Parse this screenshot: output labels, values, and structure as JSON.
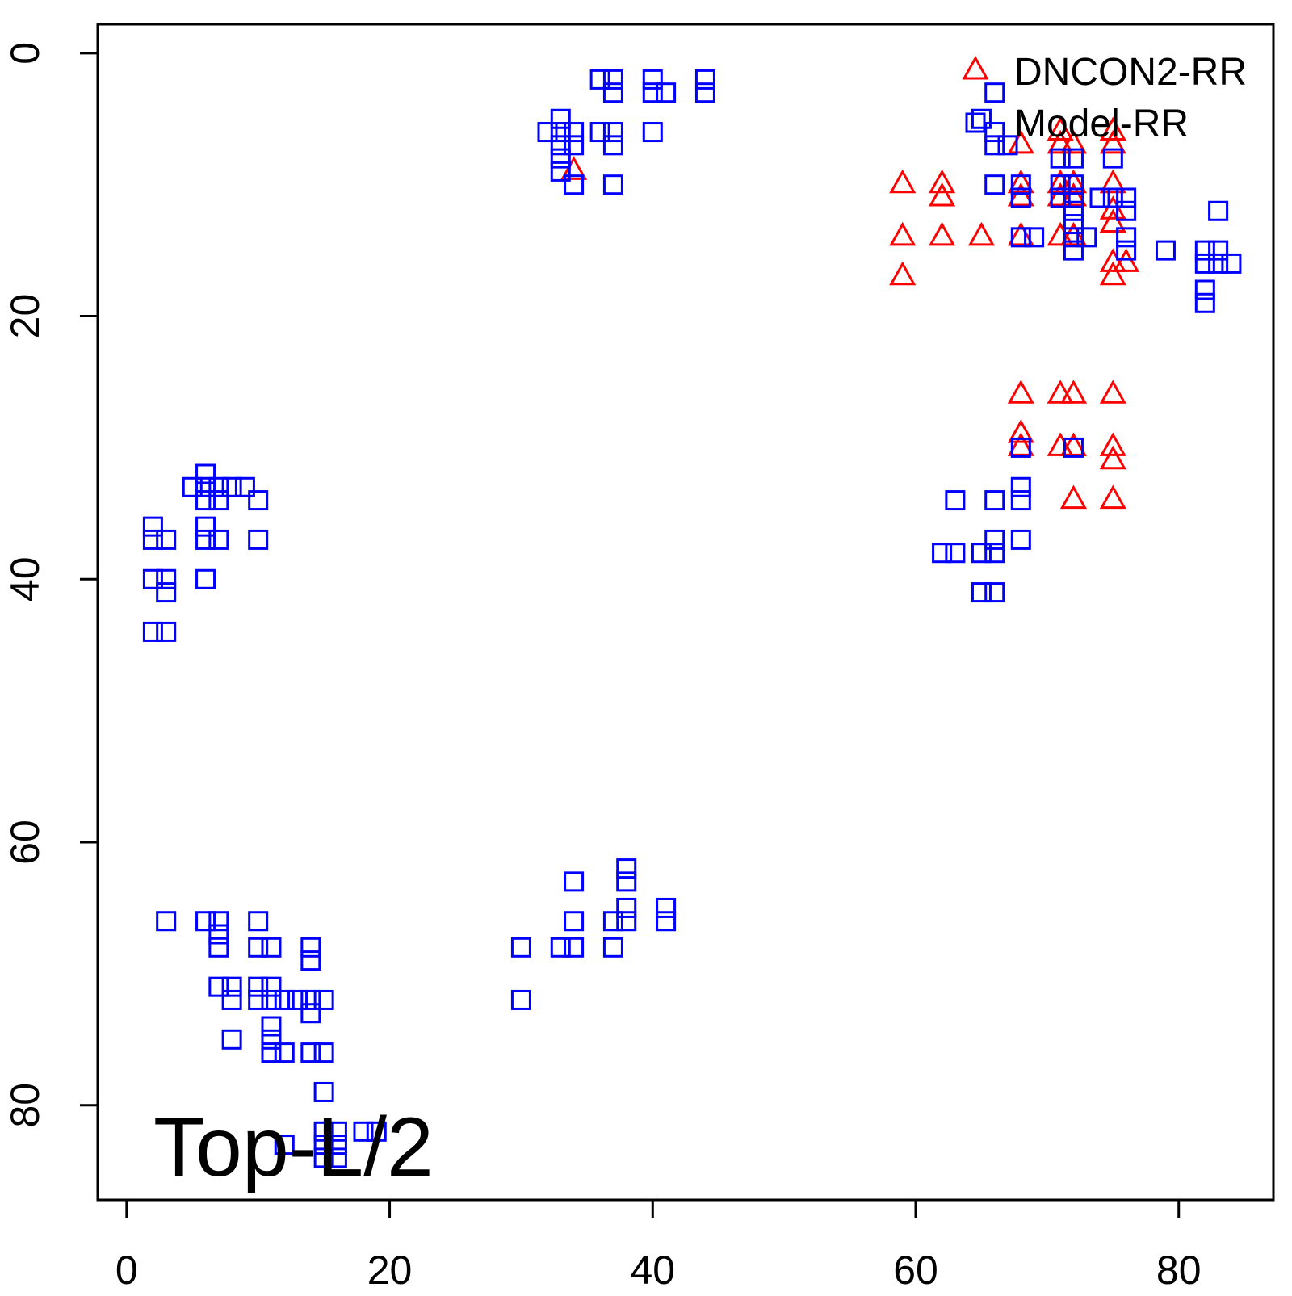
{
  "chart_data": {
    "type": "scatter",
    "title": "",
    "annotation": "Top-L/2",
    "xlabel": "",
    "ylabel": "",
    "xlim": [
      -2.2,
      87.2
    ],
    "ylim": [
      -2.2,
      87.2
    ],
    "y_inverted": true,
    "x_ticks": [
      "0",
      "20",
      "40",
      "60",
      "80"
    ],
    "y_ticks": [
      "0",
      "20",
      "40",
      "60",
      "80"
    ],
    "grid": false,
    "legend": {
      "position": "top-right",
      "entries": [
        "DNCON2-RR",
        "Model-RR"
      ]
    },
    "series": [
      {
        "name": "DNCON2-RR",
        "marker": "triangle",
        "color": "#ff0000",
        "points": [
          [
            34,
            9
          ],
          [
            59,
            10
          ],
          [
            62,
            10
          ],
          [
            62,
            11
          ],
          [
            59,
            14
          ],
          [
            62,
            14
          ],
          [
            65,
            14
          ],
          [
            59,
            17
          ],
          [
            68,
            7
          ],
          [
            71,
            6
          ],
          [
            71,
            7
          ],
          [
            72,
            7
          ],
          [
            75,
            6
          ],
          [
            75,
            7
          ],
          [
            68,
            10
          ],
          [
            68,
            11
          ],
          [
            71,
            10
          ],
          [
            71,
            11
          ],
          [
            72,
            10
          ],
          [
            72,
            11
          ],
          [
            75,
            10
          ],
          [
            75,
            12
          ],
          [
            75,
            13
          ],
          [
            68,
            14
          ],
          [
            71,
            14
          ],
          [
            72,
            14
          ],
          [
            75,
            16
          ],
          [
            75,
            17
          ],
          [
            76,
            16
          ],
          [
            68,
            26
          ],
          [
            71,
            26
          ],
          [
            72,
            26
          ],
          [
            75,
            26
          ],
          [
            68,
            29
          ],
          [
            68,
            30
          ],
          [
            71,
            30
          ],
          [
            72,
            30
          ],
          [
            75,
            30
          ],
          [
            75,
            31
          ],
          [
            72,
            34
          ],
          [
            75,
            34
          ]
        ]
      },
      {
        "name": "Model-RR",
        "marker": "square",
        "color": "#0000ff",
        "points": [
          [
            36,
            2
          ],
          [
            37,
            2
          ],
          [
            37,
            3
          ],
          [
            40,
            2
          ],
          [
            40,
            3
          ],
          [
            41,
            3
          ],
          [
            44,
            2
          ],
          [
            44,
            3
          ],
          [
            32,
            6
          ],
          [
            33,
            5
          ],
          [
            33,
            6
          ],
          [
            33,
            7
          ],
          [
            33,
            8
          ],
          [
            33,
            9
          ],
          [
            34,
            6
          ],
          [
            34,
            7
          ],
          [
            34,
            10
          ],
          [
            36,
            6
          ],
          [
            37,
            6
          ],
          [
            37,
            7
          ],
          [
            37,
            10
          ],
          [
            40,
            6
          ],
          [
            66,
            3
          ],
          [
            65,
            5
          ],
          [
            66,
            6
          ],
          [
            66,
            7
          ],
          [
            67,
            7
          ],
          [
            66,
            10
          ],
          [
            68,
            10
          ],
          [
            68,
            11
          ],
          [
            68,
            14
          ],
          [
            69,
            14
          ],
          [
            71,
            8
          ],
          [
            71,
            10
          ],
          [
            71,
            11
          ],
          [
            72,
            8
          ],
          [
            72,
            10
          ],
          [
            72,
            11
          ],
          [
            72,
            12
          ],
          [
            72,
            13
          ],
          [
            72,
            14
          ],
          [
            72,
            15
          ],
          [
            73,
            14
          ],
          [
            74,
            11
          ],
          [
            75,
            8
          ],
          [
            75,
            11
          ],
          [
            76,
            11
          ],
          [
            76,
            12
          ],
          [
            76,
            14
          ],
          [
            76,
            15
          ],
          [
            79,
            15
          ],
          [
            82,
            15
          ],
          [
            82,
            16
          ],
          [
            83,
            12
          ],
          [
            83,
            15
          ],
          [
            83,
            16
          ],
          [
            84,
            16
          ],
          [
            82,
            18
          ],
          [
            82,
            19
          ],
          [
            68,
            30
          ],
          [
            72,
            30
          ],
          [
            68,
            33
          ],
          [
            68,
            34
          ],
          [
            68,
            37
          ],
          [
            63,
            34
          ],
          [
            66,
            34
          ],
          [
            66,
            37
          ],
          [
            62,
            38
          ],
          [
            63,
            38
          ],
          [
            65,
            38
          ],
          [
            66,
            38
          ],
          [
            65,
            41
          ],
          [
            66,
            41
          ],
          [
            6,
            32
          ],
          [
            5,
            33
          ],
          [
            6,
            33
          ],
          [
            7,
            33
          ],
          [
            8,
            33
          ],
          [
            9,
            33
          ],
          [
            6,
            34
          ],
          [
            7,
            34
          ],
          [
            10,
            34
          ],
          [
            2,
            36
          ],
          [
            6,
            36
          ],
          [
            2,
            37
          ],
          [
            3,
            37
          ],
          [
            6,
            37
          ],
          [
            7,
            37
          ],
          [
            10,
            37
          ],
          [
            2,
            40
          ],
          [
            3,
            40
          ],
          [
            6,
            40
          ],
          [
            3,
            41
          ],
          [
            2,
            44
          ],
          [
            3,
            44
          ],
          [
            3,
            66
          ],
          [
            6,
            66
          ],
          [
            7,
            66
          ],
          [
            10,
            66
          ],
          [
            7,
            67
          ],
          [
            7,
            68
          ],
          [
            10,
            68
          ],
          [
            11,
            68
          ],
          [
            14,
            68
          ],
          [
            14,
            69
          ],
          [
            7,
            71
          ],
          [
            8,
            71
          ],
          [
            10,
            71
          ],
          [
            11,
            71
          ],
          [
            8,
            72
          ],
          [
            10,
            72
          ],
          [
            11,
            72
          ],
          [
            12,
            72
          ],
          [
            13,
            72
          ],
          [
            14,
            72
          ],
          [
            15,
            72
          ],
          [
            14,
            73
          ],
          [
            11,
            74
          ],
          [
            11,
            75
          ],
          [
            8,
            75
          ],
          [
            11,
            76
          ],
          [
            12,
            76
          ],
          [
            14,
            76
          ],
          [
            15,
            76
          ],
          [
            15,
            79
          ],
          [
            15,
            82
          ],
          [
            16,
            82
          ],
          [
            18,
            82
          ],
          [
            19,
            82
          ],
          [
            12,
            83
          ],
          [
            15,
            83
          ],
          [
            16,
            83
          ],
          [
            15,
            84
          ],
          [
            16,
            84
          ],
          [
            30,
            68
          ],
          [
            30,
            72
          ],
          [
            33,
            68
          ],
          [
            34,
            68
          ],
          [
            34,
            66
          ],
          [
            34,
            63
          ],
          [
            37,
            66
          ],
          [
            37,
            68
          ],
          [
            38,
            62
          ],
          [
            38,
            63
          ],
          [
            38,
            65
          ],
          [
            38,
            66
          ],
          [
            41,
            65
          ],
          [
            41,
            66
          ]
        ]
      }
    ]
  }
}
